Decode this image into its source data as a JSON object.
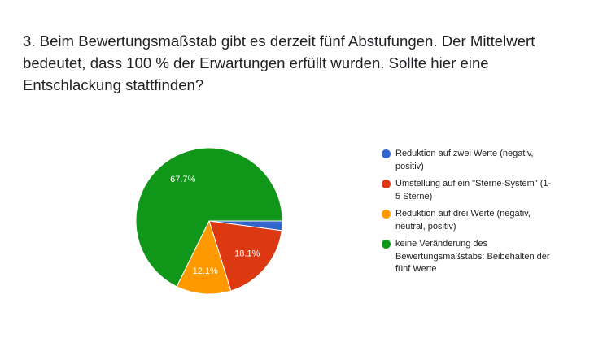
{
  "question": {
    "title": "3. Beim Bewertungsmaßstab gibt es derzeit fünf Abstufungen. Der Mittelwert bedeutet, dass 100 % der Erwartungen erfüllt wurden. Sollte hier eine Entschlackung stattfinden?"
  },
  "chart_data": {
    "type": "pie",
    "categories": [
      "Reduktion auf zwei Werte (negativ, positiv)",
      "Umstellung auf ein \"Sterne-System\" (1-5 Sterne)",
      "Reduktion auf drei Werte (negativ, neutral, positiv)",
      "keine Veränderung des Bewertungsmaßstabs: Beibehalten der fünf Werte"
    ],
    "values": [
      2.1,
      18.1,
      12.1,
      67.7
    ],
    "data_labels": [
      "",
      "18.1%",
      "12.1%",
      "67.7%"
    ],
    "colors": [
      "#3366cc",
      "#dc3912",
      "#ff9900",
      "#109618"
    ],
    "start_angle_deg": 90,
    "direction": "clockwise",
    "legend_position": "right"
  }
}
